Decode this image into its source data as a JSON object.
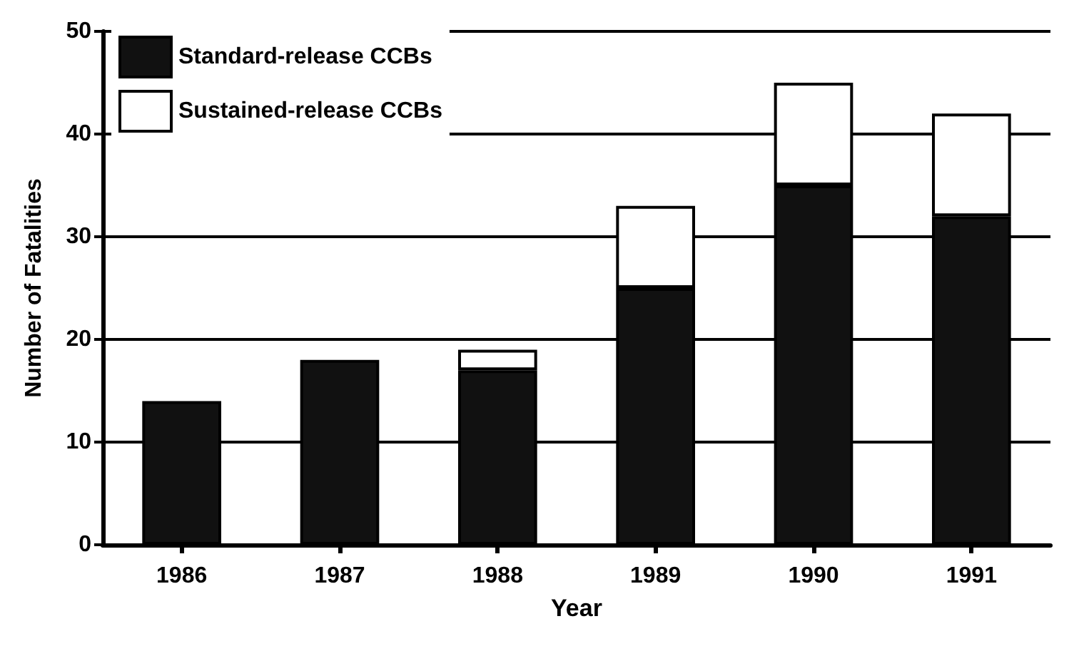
{
  "chart_data": {
    "type": "bar",
    "xlabel": "Year",
    "ylabel": "Number of Fatalities",
    "categories": [
      "1986",
      "1987",
      "1988",
      "1989",
      "1990",
      "1991"
    ],
    "series": [
      {
        "name": "Standard-release CCBs",
        "color": "#111111",
        "values": [
          14,
          18,
          17,
          25,
          35,
          32
        ]
      },
      {
        "name": "Sustained-release CCBs",
        "color": "#ffffff",
        "values": [
          null,
          null,
          2,
          8,
          10,
          10
        ]
      }
    ],
    "stacked": true,
    "ylim": [
      0,
      50
    ],
    "yticks": [
      0,
      10,
      20,
      30,
      40,
      50
    ],
    "grid": "y",
    "legend": "top left"
  }
}
